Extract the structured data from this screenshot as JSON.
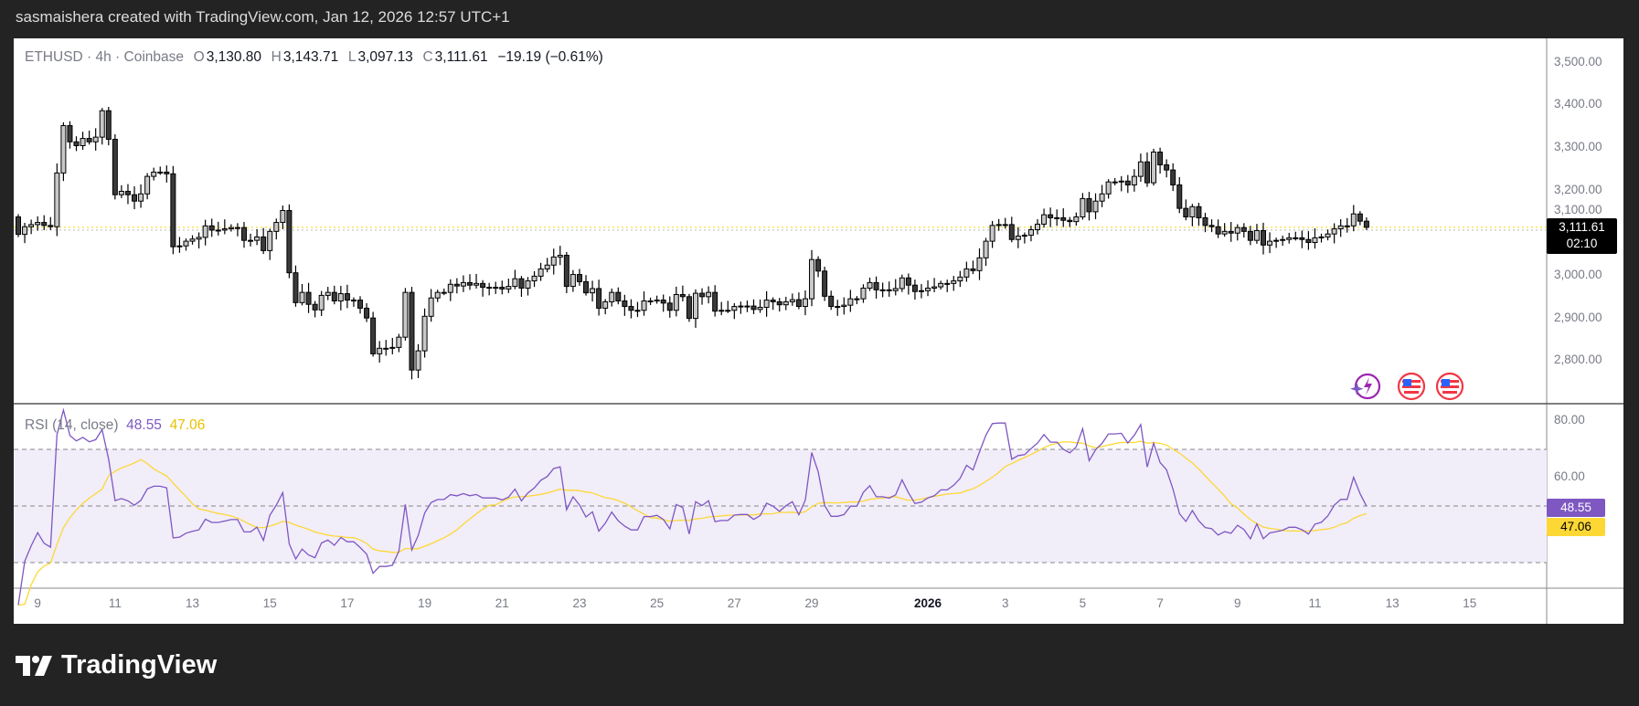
{
  "header": {
    "text": "sasmaishera created with TradingView.com, Jan 12, 2026 12:57 UTC+1"
  },
  "legend": {
    "symbol": "ETHUSD · 4h · Coinbase",
    "o_label": "O",
    "open": "3,130.80",
    "h_label": "H",
    "high": "3,143.71",
    "l_label": "L",
    "low": "3,097.13",
    "c_label": "C",
    "close": "3,111.61",
    "change": "−19.19 (−0.61%)"
  },
  "price_label": {
    "price": "3,111.61",
    "countdown": "02:10"
  },
  "price_axis": [
    "3,500.00",
    "3,400.00",
    "3,300.00",
    "3,200.00",
    "3,100.00",
    "3,000.00",
    "2,900.00",
    "2,800.00"
  ],
  "rsi": {
    "title": "RSI (14, close)",
    "value": "48.55",
    "ma_value": "47.06",
    "axis": [
      "80.00",
      "60.00"
    ],
    "upper_band": 70,
    "middle_band": 50,
    "lower_band": 30,
    "rsi_color": "#7e57c2",
    "ma_color": "#fdd835",
    "band_fill": "#f1edf9"
  },
  "time_axis": [
    {
      "label": "9",
      "date": "2025-12-09"
    },
    {
      "label": "11",
      "date": "2025-12-11"
    },
    {
      "label": "13",
      "date": "2025-12-13"
    },
    {
      "label": "15",
      "date": "2025-12-15"
    },
    {
      "label": "17",
      "date": "2025-12-17"
    },
    {
      "label": "19",
      "date": "2025-12-19"
    },
    {
      "label": "21",
      "date": "2025-12-21"
    },
    {
      "label": "23",
      "date": "2025-12-23"
    },
    {
      "label": "25",
      "date": "2025-12-25"
    },
    {
      "label": "27",
      "date": "2025-12-27"
    },
    {
      "label": "29",
      "date": "2025-12-29"
    },
    {
      "label": "2026",
      "date": "2026-01-01",
      "bold": true
    },
    {
      "label": "3",
      "date": "2026-01-03"
    },
    {
      "label": "5",
      "date": "2026-01-05"
    },
    {
      "label": "7",
      "date": "2026-01-07"
    },
    {
      "label": "9",
      "date": "2026-01-09"
    },
    {
      "label": "11",
      "date": "2026-01-11"
    },
    {
      "label": "13",
      "date": "2026-01-13"
    },
    {
      "label": "15",
      "date": "2026-01-15"
    }
  ],
  "icons": [
    "sparkle-lightning-icon",
    "us-flag-event-icon",
    "us-flag-event-icon"
  ],
  "branding": {
    "logo_text": "TradingView"
  },
  "colors": {
    "up_body": "#c8c8c8",
    "down_body": "#3a3a3a",
    "outline": "#000000",
    "price_line": "#f5d90a"
  },
  "chart_data": {
    "type": "candlestick",
    "symbol": "ETHUSD",
    "interval": "4h",
    "ylim": [
      2740,
      3560
    ],
    "first_open": 3136,
    "closes": [
      3095,
      3113,
      3118,
      3123,
      3116,
      3113,
      3239,
      3350,
      3312,
      3303,
      3320,
      3312,
      3323,
      3385,
      3318,
      3188,
      3196,
      3188,
      3173,
      3190,
      3231,
      3241,
      3241,
      3237,
      3066,
      3068,
      3079,
      3084,
      3088,
      3115,
      3105,
      3105,
      3108,
      3111,
      3111,
      3081,
      3081,
      3089,
      3057,
      3102,
      3123,
      3151,
      3005,
      2935,
      2959,
      2931,
      2918,
      2952,
      2959,
      2939,
      2956,
      2941,
      2941,
      2922,
      2899,
      2815,
      2828,
      2828,
      2830,
      2854,
      2959,
      2777,
      2822,
      2903,
      2946,
      2959,
      2959,
      2978,
      2974,
      2982,
      2976,
      2980,
      2971,
      2971,
      2971,
      2967,
      2973,
      2991,
      2969,
      2986,
      2997,
      3014,
      3023,
      3042,
      3046,
      2973,
      3001,
      2984,
      2958,
      2968,
      2922,
      2937,
      2959,
      2939,
      2926,
      2917,
      2917,
      2939,
      2939,
      2941,
      2934,
      2917,
      2954,
      2949,
      2898,
      2957,
      2949,
      2959,
      2915,
      2917,
      2917,
      2926,
      2927,
      2927,
      2919,
      2924,
      2941,
      2937,
      2930,
      2937,
      2942,
      2926,
      2944,
      3036,
      3009,
      2950,
      2926,
      2926,
      2929,
      2944,
      2944,
      2969,
      2982,
      2965,
      2965,
      2963,
      2968,
      2993,
      2976,
      2961,
      2963,
      2969,
      2972,
      2980,
      2980,
      2986,
      2995,
      3014,
      3010,
      3040,
      3079,
      3116,
      3118,
      3118,
      3083,
      3091,
      3093,
      3106,
      3119,
      3141,
      3134,
      3134,
      3128,
      3125,
      3136,
      3179,
      3148,
      3173,
      3190,
      3218,
      3218,
      3220,
      3211,
      3231,
      3265,
      3216,
      3288,
      3258,
      3246,
      3211,
      3156,
      3136,
      3160,
      3134,
      3116,
      3113,
      3096,
      3102,
      3098,
      3111,
      3102,
      3081,
      3104,
      3070,
      3079,
      3081,
      3083,
      3087,
      3087,
      3083,
      3076,
      3087,
      3089,
      3096,
      3108,
      3115,
      3115,
      3143,
      3126,
      3111.61
    ]
  }
}
